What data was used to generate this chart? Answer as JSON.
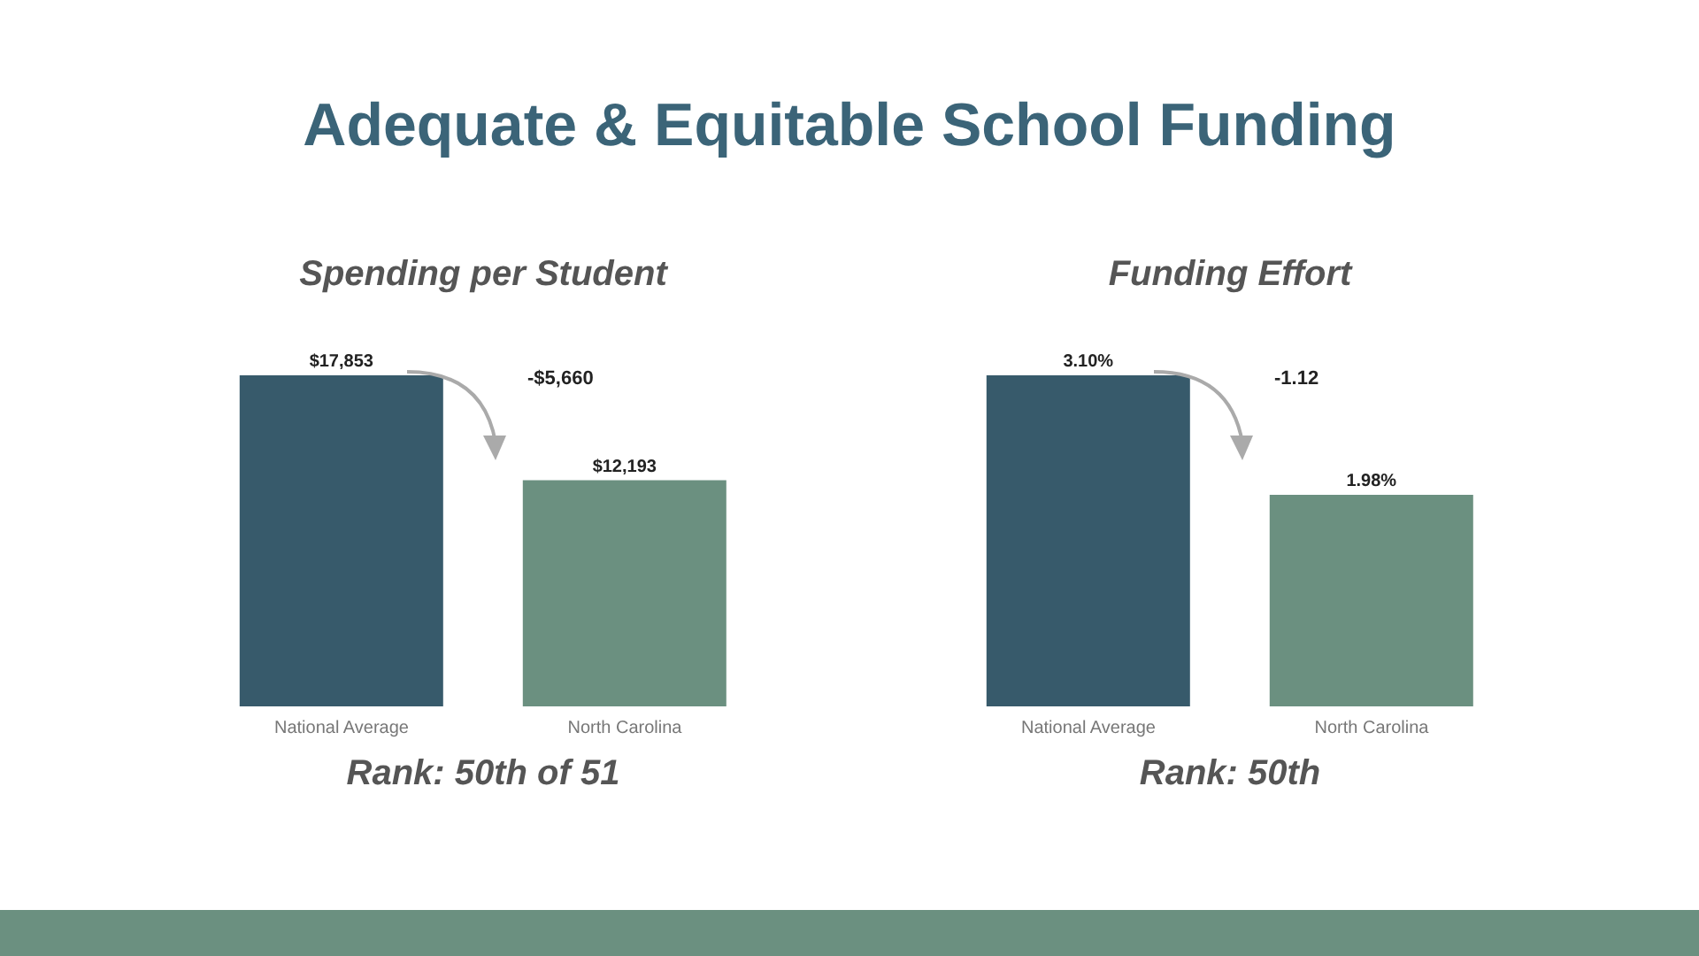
{
  "chart_data": [
    {
      "type": "other",
      "title": "Adequate & Equitable School Funding"
    },
    {
      "type": "bar",
      "title": "Spending per Student",
      "categories": [
        "National Average",
        "North Carolina"
      ],
      "values": [
        17853,
        12193
      ],
      "colors": [
        "#375a6b",
        "#6b9080"
      ],
      "value_labels": [
        "$17,853",
        "$12,193"
      ],
      "annotations": [
        "-$5,660",
        "Rank: 50th of 51"
      ]
    },
    {
      "type": "bar",
      "title": "Funding Effort",
      "categories": [
        "National Average",
        "North Carolina"
      ],
      "values": [
        3.1,
        1.98
      ],
      "colors": [
        "#375a6b",
        "#6b9080"
      ],
      "value_labels": [
        "3.10%",
        "1.98%"
      ],
      "annotations": [
        "-1.12",
        "Rank: 50th"
      ]
    }
  ]
}
